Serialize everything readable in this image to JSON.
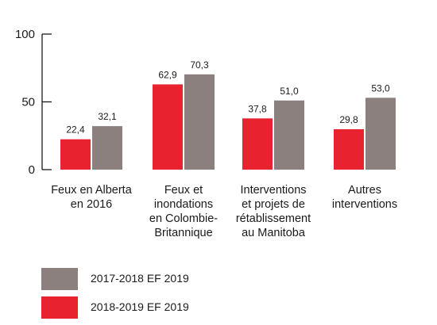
{
  "chart_data": {
    "type": "bar",
    "categories": [
      [
        "Feux en Alberta",
        "en 2016"
      ],
      [
        "Feux et",
        "inondations",
        "en Colombie-",
        "Britannique"
      ],
      [
        "Interventions",
        "et projets de",
        "rétablissement",
        "au Manitoba"
      ],
      [
        "Autres",
        "interventions"
      ]
    ],
    "series": [
      {
        "name": "2018-2019 EF 2019",
        "color": "#e8222e",
        "values": [
          22.4,
          62.9,
          37.8,
          29.8
        ],
        "labels": [
          "22,4",
          "62,9",
          "37,8",
          "29,8"
        ]
      },
      {
        "name": "2017-2018 EF 2019",
        "color": "#8b807d",
        "values": [
          32.1,
          70.3,
          51.0,
          53.0
        ],
        "labels": [
          "32,1",
          "70,3",
          "51,0",
          "53,0"
        ]
      }
    ],
    "yticks": [
      0,
      50,
      100
    ],
    "ylim": [
      0,
      100
    ],
    "legend": [
      {
        "label": "2017-2018 EF 2019",
        "color": "#8b807d"
      },
      {
        "label": "2018-2019 EF 2019",
        "color": "#e8222e"
      }
    ]
  }
}
